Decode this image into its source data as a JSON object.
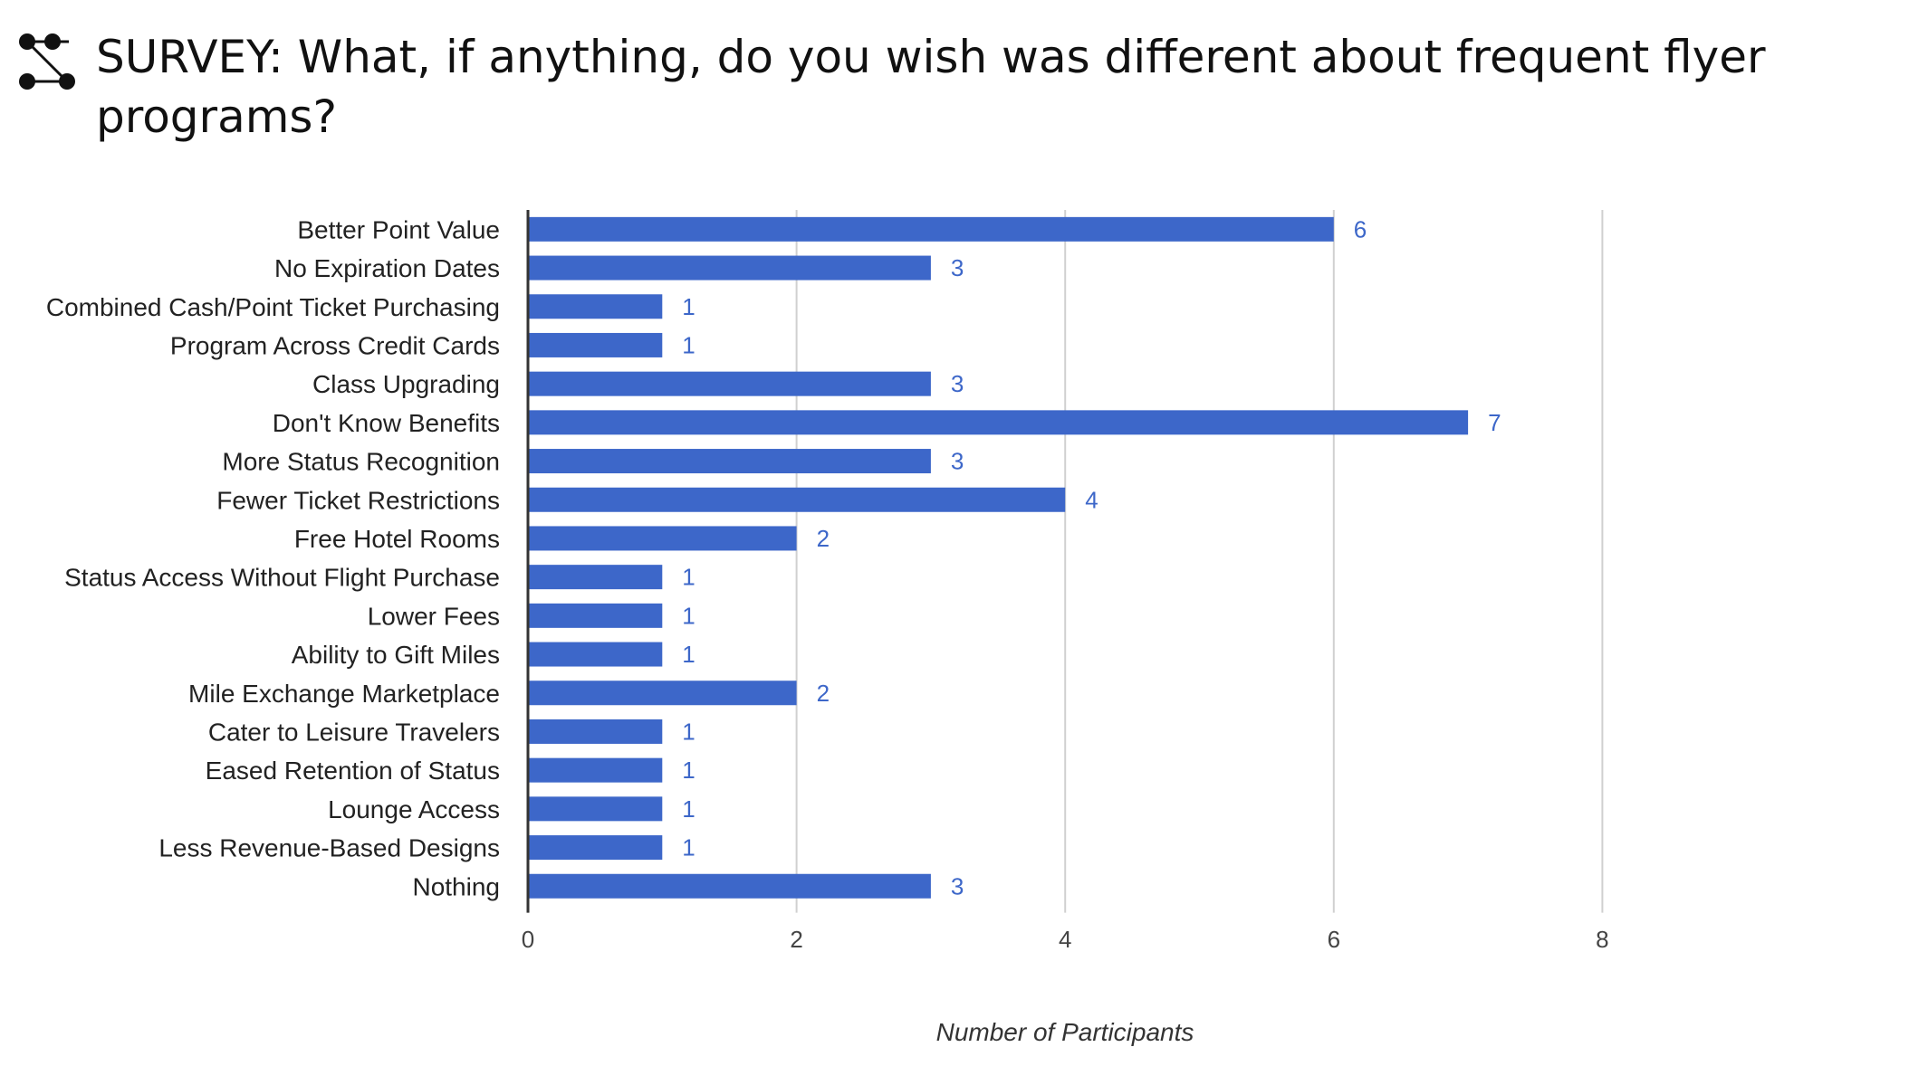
{
  "header": {
    "logo_icon": "connected-dots-icon",
    "title": "SURVEY: What, if anything, do you wish was different about frequent flyer programs?"
  },
  "chart_data": {
    "type": "bar",
    "orientation": "horizontal",
    "title": "",
    "xlabel": "Number of Participants",
    "ylabel": "",
    "xlim": [
      0,
      9
    ],
    "xticks": [
      0,
      2,
      4,
      6,
      8
    ],
    "grid": true,
    "bar_color": "#3d67c9",
    "label_color": "#3d67c9",
    "categories": [
      "Better Point Value",
      "No Expiration Dates",
      "Combined Cash/Point Ticket Purchasing",
      "Program Across Credit Cards",
      "Class Upgrading",
      "Don't Know Benefits",
      "More Status Recognition",
      "Fewer Ticket Restrictions",
      "Free Hotel Rooms",
      "Status Access Without Flight Purchase",
      "Lower Fees",
      "Ability to Gift Miles",
      "Mile Exchange Marketplace",
      "Cater to Leisure Travelers",
      "Eased Retention of Status",
      "Lounge Access",
      "Less Revenue-Based Designs",
      "Nothing"
    ],
    "values": [
      6,
      3,
      1,
      1,
      3,
      7,
      3,
      4,
      2,
      1,
      1,
      1,
      2,
      1,
      1,
      1,
      1,
      3
    ]
  }
}
